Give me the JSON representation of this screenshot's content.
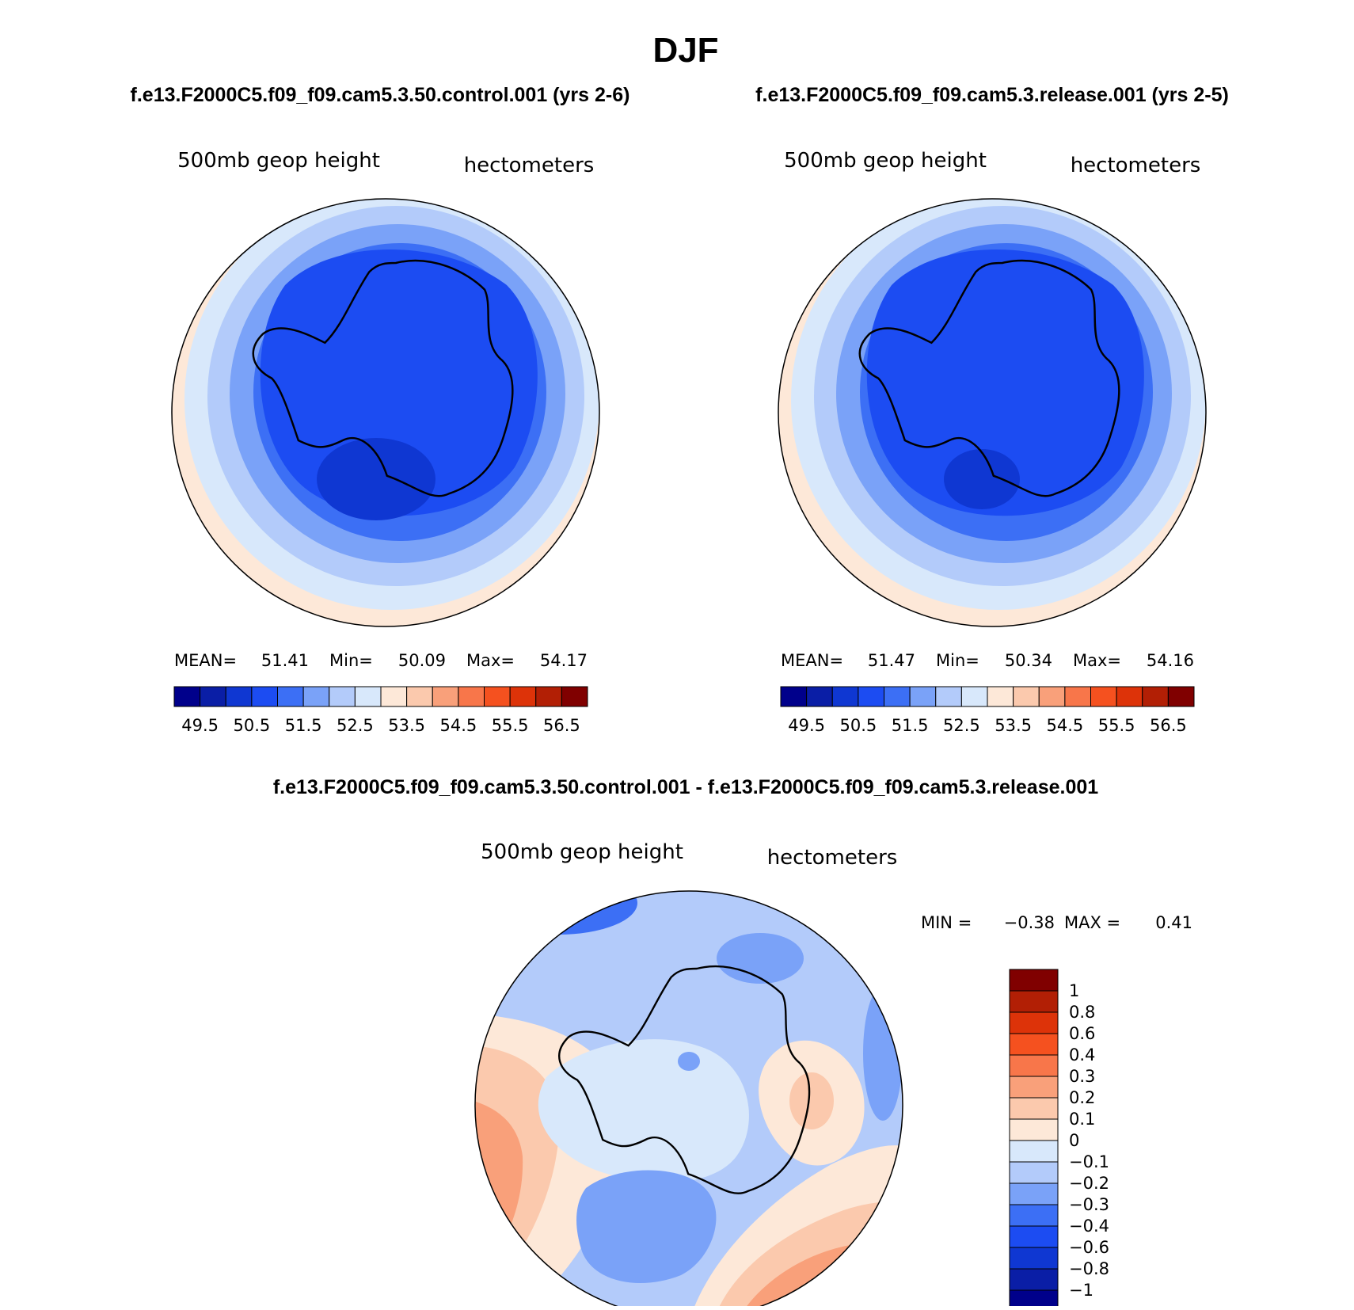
{
  "chart_data": {
    "type": "contour-map",
    "title": "DJF",
    "panels": [
      {
        "id": "control",
        "header": "f.e13.F2000C5.f09_f09.cam5.3.50.control.001 (yrs 2-6)",
        "left_label": "500mb geop height",
        "right_label": "hectometers",
        "stats": {
          "mean_label": "MEAN=",
          "mean": "51.41",
          "min_label": "Min=",
          "min": "50.09",
          "max_label": "Max=",
          "max": "54.17"
        },
        "colorbar_ticks": [
          "49.5",
          "50.5",
          "51.5",
          "52.5",
          "53.5",
          "54.5",
          "55.5",
          "56.5"
        ]
      },
      {
        "id": "release",
        "header": "f.e13.F2000C5.f09_f09.cam5.3.release.001 (yrs 2-5)",
        "left_label": "500mb geop height",
        "right_label": "hectometers",
        "stats": {
          "mean_label": "MEAN=",
          "mean": "51.47",
          "min_label": "Min=",
          "min": "50.34",
          "max_label": "Max=",
          "max": "54.16"
        },
        "colorbar_ticks": [
          "49.5",
          "50.5",
          "51.5",
          "52.5",
          "53.5",
          "54.5",
          "55.5",
          "56.5"
        ]
      },
      {
        "id": "difference",
        "header": "f.e13.F2000C5.f09_f09.cam5.3.50.control.001 - f.e13.F2000C5.f09_f09.cam5.3.release.001",
        "left_label": "500mb geop height",
        "right_label": "hectometers",
        "stats": {
          "min_label": "MIN =",
          "min": "−0.38",
          "max_label": "MAX =",
          "max": "0.41"
        },
        "colorbar_ticks": [
          "1",
          "0.8",
          "0.6",
          "0.4",
          "0.3",
          "0.2",
          "0.1",
          "0",
          "−0.1",
          "−0.2",
          "−0.3",
          "−0.4",
          "−0.6",
          "−0.8",
          "−1"
        ]
      }
    ],
    "abs_colors": [
      "#00008b",
      "#0a1ea6",
      "#0f37d2",
      "#1c4cf2",
      "#3c6ff5",
      "#7aa2f8",
      "#b3cbfa",
      "#d8e8fb",
      "#fde8d8",
      "#fbc9ad",
      "#f9a07a",
      "#f8764a",
      "#f5511f",
      "#dd3309",
      "#b21f05",
      "#800000"
    ],
    "diff_colors": [
      "#800000",
      "#b21f05",
      "#dd3309",
      "#f5511f",
      "#f8764a",
      "#f9a07a",
      "#fbc9ad",
      "#fde8d8",
      "#d8e8fb",
      "#b3cbfa",
      "#7aa2f8",
      "#3c6ff5",
      "#1c4cf2",
      "#0f37d2",
      "#0a1ea6",
      "#00008b"
    ]
  }
}
